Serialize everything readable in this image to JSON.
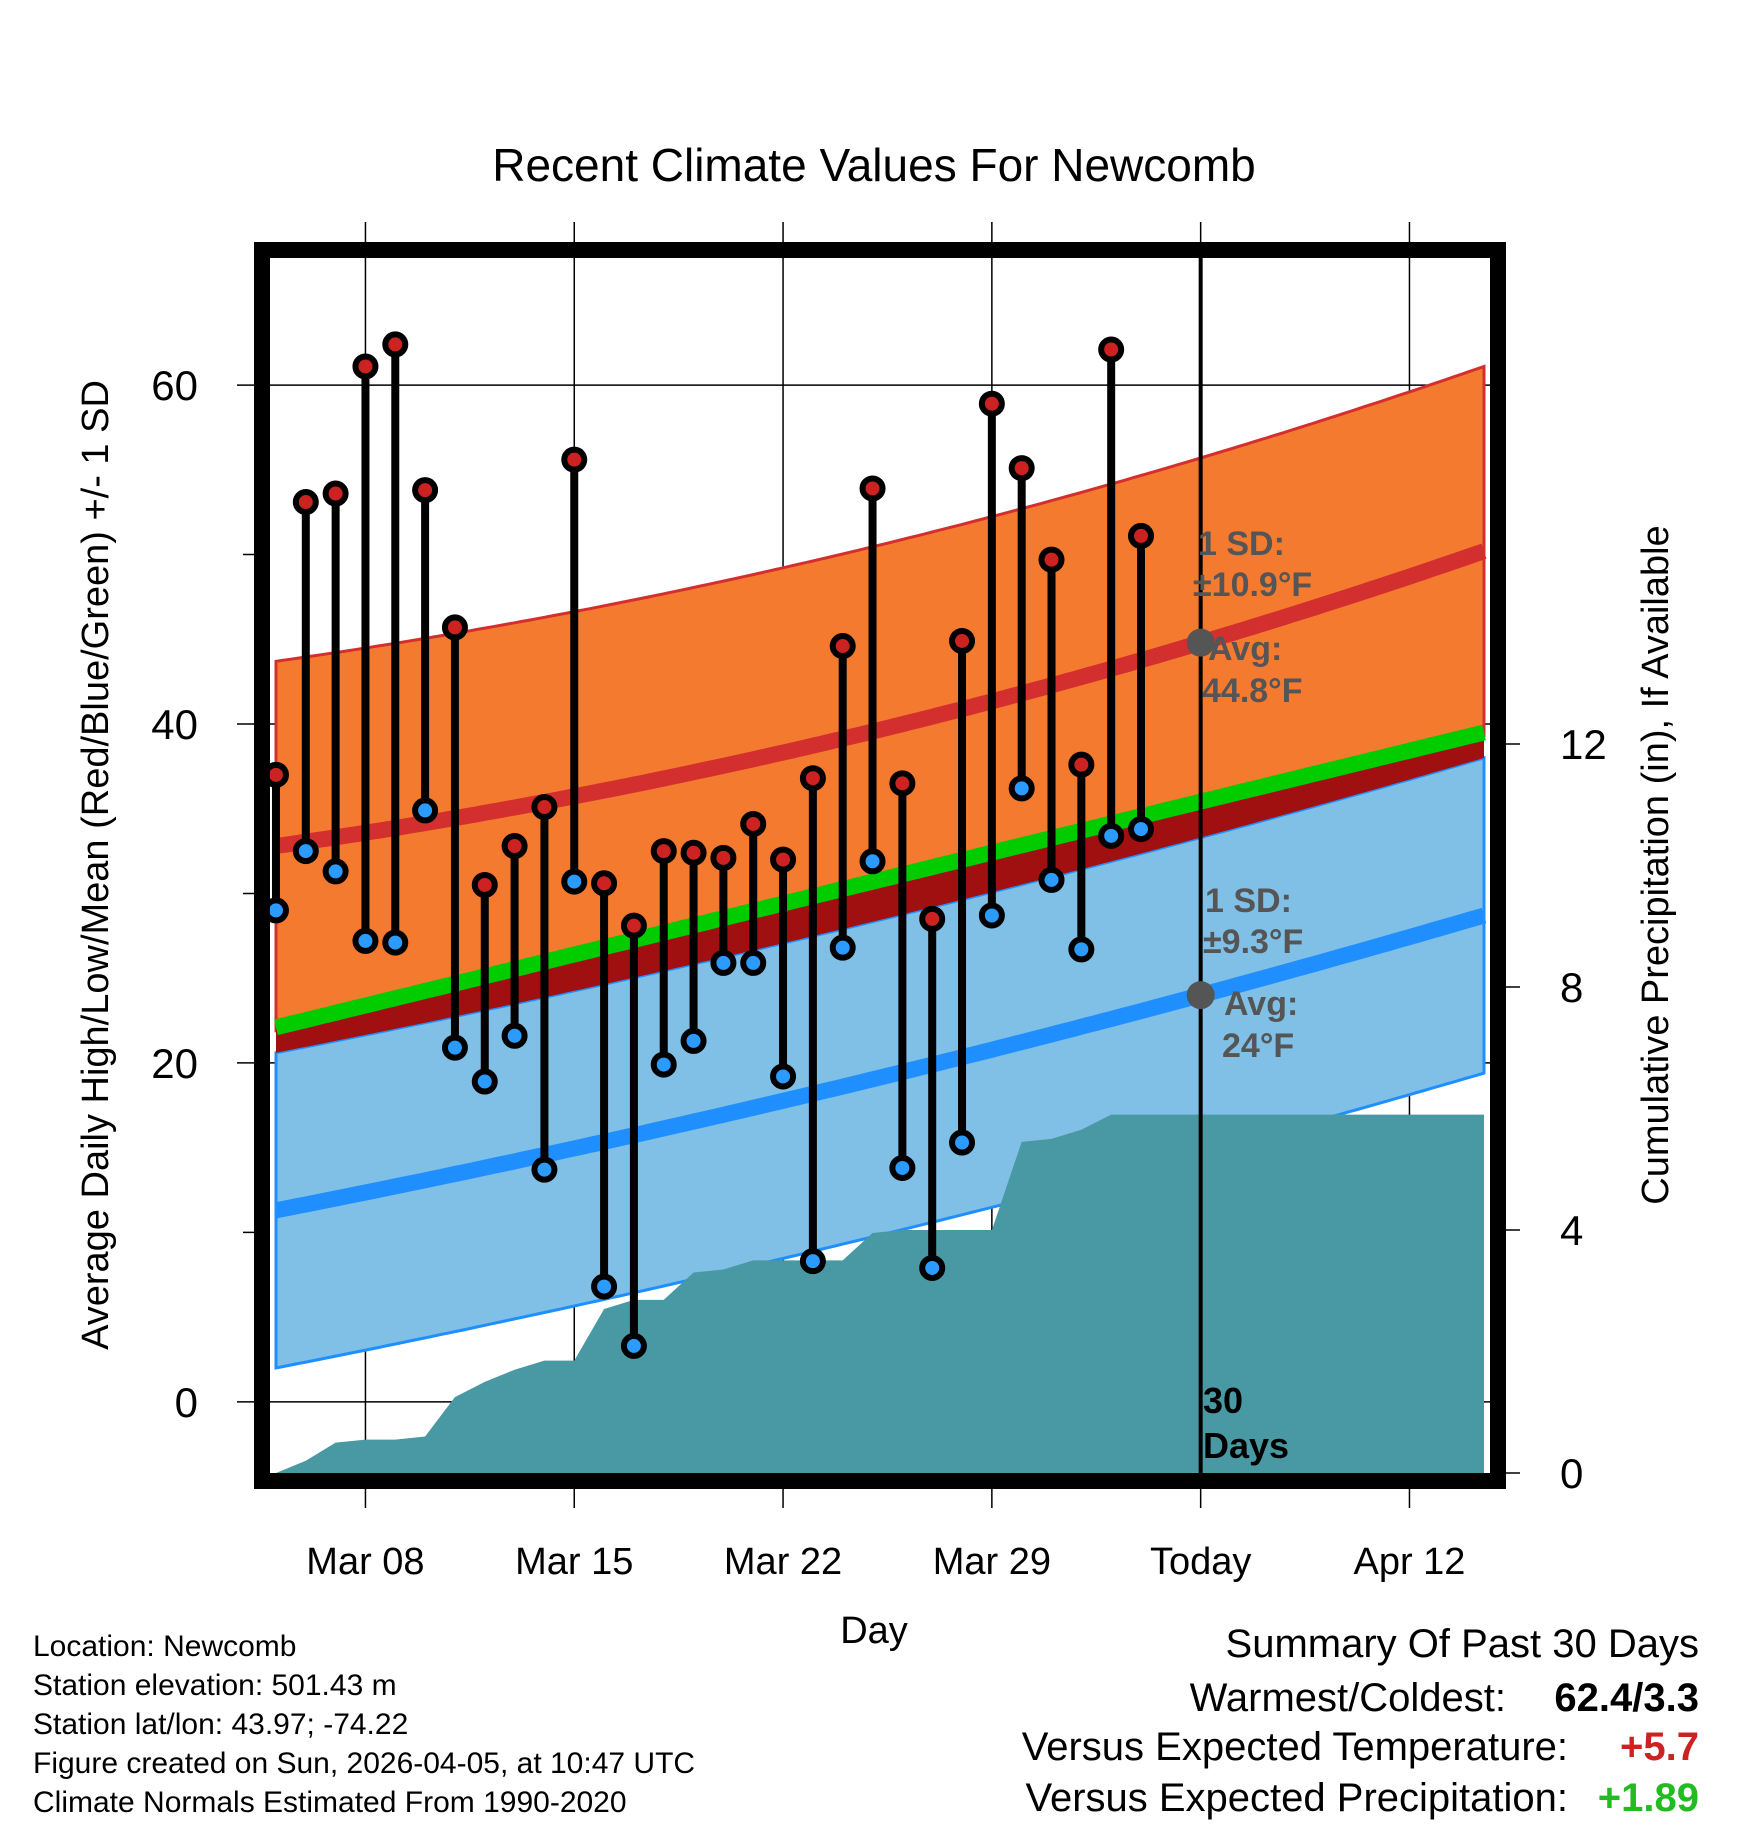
{
  "chart_data": {
    "type": "line",
    "title": "Recent Climate Values For Newcomb",
    "xlabel": "Day",
    "ylabel_left": "Average Daily High/Low/Mean (Red/Blue/Green) +/- 1 SD",
    "ylabel_right": "Cumulative Precipitation (in), If Available",
    "x_ticks": [
      {
        "day": 8,
        "label": "Mar 08"
      },
      {
        "day": 15,
        "label": "Mar 15"
      },
      {
        "day": 22,
        "label": "Mar 22"
      },
      {
        "day": 29,
        "label": "Mar 29"
      },
      {
        "day": 36,
        "label": "Today"
      },
      {
        "day": 43,
        "label": "Apr 12"
      }
    ],
    "xlim": [
      4.8,
      45.7
    ],
    "ylim_left": [
      -4.2,
      67.5
    ],
    "ylim_right": [
      0,
      20
    ],
    "y_ticks_left": [
      0,
      20,
      40,
      60
    ],
    "y_ticks_right": [
      0,
      4,
      8,
      12
    ],
    "today_day": 36,
    "period_label": "30 Days",
    "highs": [
      37.0,
      53.1,
      53.6,
      61.1,
      62.4,
      53.8,
      45.7,
      30.5,
      32.8,
      35.1,
      55.6,
      30.6,
      28.1,
      32.5,
      32.4,
      32.1,
      34.1,
      32.0,
      36.8,
      44.6,
      53.9,
      36.5,
      28.5,
      44.9,
      58.9,
      55.1,
      49.7,
      37.6,
      62.1,
      51.1
    ],
    "lows": [
      29.0,
      32.5,
      31.3,
      27.2,
      27.1,
      34.9,
      20.9,
      18.9,
      21.6,
      13.7,
      30.7,
      6.8,
      3.3,
      19.9,
      21.3,
      25.9,
      25.9,
      19.2,
      8.3,
      26.8,
      31.9,
      13.8,
      7.9,
      15.3,
      28.7,
      36.2,
      30.8,
      26.7,
      33.4,
      33.8
    ],
    "normal_high_avg": {
      "start": 32.8,
      "today": 44.8,
      "end": 50.2
    },
    "normal_high_sd": 10.9,
    "normal_low_avg": {
      "start": 11.3,
      "today": 24.0,
      "end": 28.7
    },
    "normal_low_sd": 9.3,
    "normal_mean": {
      "start": 22.1,
      "end": 39.5
    },
    "precip_cumulative": [
      0.0,
      0.2,
      0.5,
      0.55,
      0.55,
      0.6,
      1.25,
      1.5,
      1.7,
      1.85,
      1.85,
      2.7,
      2.85,
      2.85,
      3.3,
      3.35,
      3.5,
      3.5,
      3.5,
      3.5,
      3.95,
      4.0,
      4.0,
      4.0,
      4.0,
      5.45,
      5.5,
      5.65,
      5.9,
      5.9,
      5.9
    ],
    "annotations": {
      "high_sd_label": "1 SD:",
      "high_sd_value": "±10.9°F",
      "high_avg_label": "Avg:",
      "high_avg_value": "44.8°F",
      "low_sd_label": "1 SD:",
      "low_sd_value": "±9.3°F",
      "low_avg_label": "Avg:",
      "low_avg_value": "24°F"
    },
    "colors": {
      "high_band": "#f47a30",
      "high_line": "#d42f2f",
      "low_band": "#80bfe6",
      "low_line": "#1f8fff",
      "mean_line": "#00cc00",
      "overlap": "#a01010",
      "precip": "#4899a3",
      "high_dot": "#cc2222",
      "low_dot": "#2b9bff",
      "annotation": "#555555"
    }
  },
  "footer": {
    "location": "Location: Newcomb",
    "elevation": "Station elevation: 501.43 m",
    "latlon": "Station lat/lon: 43.97; -74.22",
    "created": "Figure created on Sun, 2026-04-05, at 10:47 UTC",
    "normals": "Climate Normals Estimated From 1990-2020"
  },
  "summary": {
    "title": "Summary Of Past 30 Days",
    "warmest_coldest_label": "Warmest/Coldest:",
    "warmest_coldest_value": "62.4/3.3",
    "temp_label": "Versus Expected Temperature:",
    "temp_value": "+5.7",
    "temp_color": "#cc2222",
    "precip_label": "Versus Expected Precipitation:",
    "precip_value": "+1.89",
    "precip_color": "#22bb22"
  }
}
